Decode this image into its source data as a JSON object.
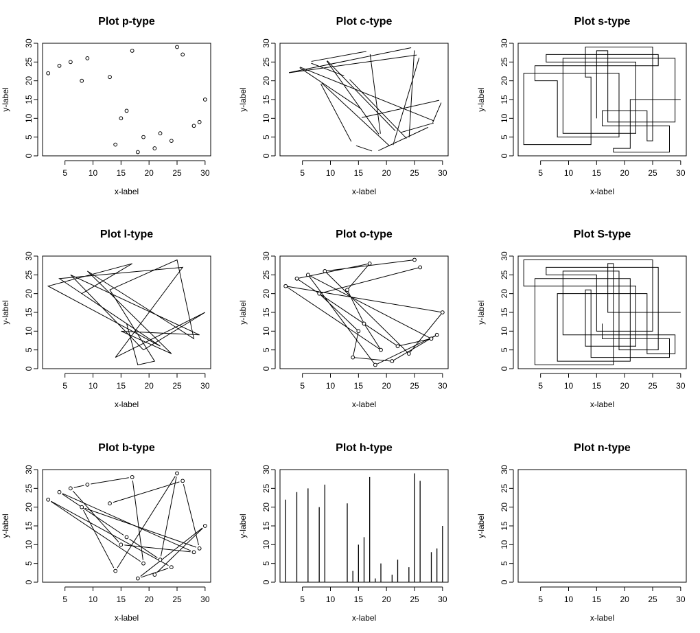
{
  "chart_data": [
    {
      "type": "scatter",
      "title": "Plot p-type",
      "plot_type": "p",
      "xlabel": "x-label",
      "ylabel": "y-label",
      "x": [
        2,
        4,
        6,
        8,
        9,
        13,
        14,
        15,
        16,
        17,
        18,
        19,
        21,
        22,
        24,
        25,
        26,
        28,
        29,
        30
      ],
      "y": [
        22,
        24,
        25,
        20,
        26,
        21,
        3,
        10,
        12,
        28,
        1,
        5,
        2,
        6,
        4,
        29,
        27,
        8,
        9,
        15
      ],
      "xlim": [
        1,
        31
      ],
      "ylim": [
        0,
        30
      ],
      "xticks": [
        5,
        10,
        15,
        20,
        25,
        30
      ],
      "yticks": [
        0,
        5,
        10,
        15,
        20,
        25,
        30
      ]
    },
    {
      "type": "line",
      "title": "Plot c-type",
      "plot_type": "c",
      "xlabel": "x-label",
      "ylabel": "y-label",
      "x": [
        15,
        30,
        28,
        18,
        14,
        8,
        21,
        26,
        2,
        25,
        24,
        13,
        6,
        17,
        19,
        9,
        22,
        29,
        4,
        16
      ],
      "y": [
        10,
        15,
        8,
        1,
        3,
        20,
        2,
        27,
        22,
        29,
        4,
        21,
        25,
        28,
        5,
        26,
        6,
        9,
        24,
        12
      ],
      "xlim": [
        1,
        31
      ],
      "ylim": [
        0,
        30
      ],
      "xticks": [
        5,
        10,
        15,
        20,
        25,
        30
      ],
      "yticks": [
        0,
        5,
        10,
        15,
        20,
        25,
        30
      ]
    },
    {
      "type": "line",
      "title": "Plot s-type",
      "plot_type": "s",
      "xlabel": "x-label",
      "ylabel": "y-label",
      "x": [
        30,
        21,
        18,
        28,
        16,
        24,
        25,
        13,
        14,
        2,
        19,
        8,
        4,
        26,
        6,
        22,
        9,
        29,
        17,
        15
      ],
      "y": [
        15,
        2,
        1,
        8,
        12,
        4,
        29,
        21,
        3,
        22,
        5,
        20,
        24,
        27,
        25,
        6,
        26,
        9,
        28,
        10
      ],
      "xlim": [
        1,
        31
      ],
      "ylim": [
        0,
        30
      ],
      "xticks": [
        5,
        10,
        15,
        20,
        25,
        30
      ],
      "yticks": [
        0,
        5,
        10,
        15,
        20,
        25,
        30
      ]
    },
    {
      "type": "line",
      "title": "Plot l-type",
      "plot_type": "l",
      "xlabel": "x-label",
      "ylabel": "y-label",
      "x": [
        8,
        17,
        2,
        22,
        4,
        26,
        14,
        30,
        19,
        6,
        29,
        15,
        24,
        9,
        28,
        25,
        13,
        21,
        18,
        16
      ],
      "y": [
        20,
        28,
        22,
        6,
        24,
        27,
        3,
        15,
        5,
        25,
        9,
        10,
        4,
        26,
        8,
        29,
        21,
        2,
        1,
        12
      ],
      "xlim": [
        1,
        31
      ],
      "ylim": [
        0,
        30
      ],
      "xticks": [
        5,
        10,
        15,
        20,
        25,
        30
      ],
      "yticks": [
        0,
        5,
        10,
        15,
        20,
        25,
        30
      ]
    },
    {
      "type": "line",
      "title": "Plot o-type",
      "plot_type": "o",
      "xlabel": "x-label",
      "ylabel": "y-label",
      "x": [
        25,
        9,
        24,
        30,
        2,
        19,
        16,
        13,
        17,
        4,
        22,
        28,
        6,
        18,
        29,
        21,
        14,
        15,
        8,
        26
      ],
      "y": [
        29,
        26,
        4,
        15,
        22,
        5,
        12,
        21,
        28,
        24,
        6,
        8,
        25,
        1,
        9,
        2,
        3,
        10,
        20,
        27
      ],
      "xlim": [
        1,
        31
      ],
      "ylim": [
        0,
        30
      ],
      "xticks": [
        5,
        10,
        15,
        20,
        25,
        30
      ],
      "yticks": [
        0,
        5,
        10,
        15,
        20,
        25,
        30
      ]
    },
    {
      "type": "line",
      "title": "Plot S-type",
      "plot_type": "S",
      "xlabel": "x-label",
      "ylabel": "y-label",
      "x": [
        16,
        28,
        14,
        13,
        22,
        2,
        25,
        15,
        6,
        26,
        19,
        9,
        29,
        24,
        8,
        21,
        4,
        18,
        17,
        30
      ],
      "y": [
        12,
        8,
        3,
        21,
        6,
        22,
        29,
        10,
        25,
        27,
        5,
        26,
        9,
        4,
        20,
        2,
        24,
        1,
        28,
        15
      ],
      "xlim": [
        1,
        31
      ],
      "ylim": [
        0,
        30
      ],
      "xticks": [
        5,
        10,
        15,
        20,
        25,
        30
      ],
      "yticks": [
        0,
        5,
        10,
        15,
        20,
        25,
        30
      ]
    },
    {
      "type": "line",
      "title": "Plot b-type",
      "plot_type": "b",
      "xlabel": "x-label",
      "ylabel": "y-label",
      "x": [
        13,
        26,
        29,
        8,
        14,
        25,
        22,
        16,
        4,
        28,
        15,
        6,
        9,
        17,
        19,
        2,
        24,
        18,
        30,
        21
      ],
      "y": [
        21,
        27,
        9,
        20,
        3,
        29,
        6,
        12,
        24,
        8,
        10,
        25,
        26,
        28,
        5,
        22,
        4,
        1,
        15,
        2
      ],
      "xlim": [
        1,
        31
      ],
      "ylim": [
        0,
        30
      ],
      "xticks": [
        5,
        10,
        15,
        20,
        25,
        30
      ],
      "yticks": [
        0,
        5,
        10,
        15,
        20,
        25,
        30
      ]
    },
    {
      "type": "bar",
      "title": "Plot h-type",
      "plot_type": "h",
      "xlabel": "x-label",
      "ylabel": "y-label",
      "x": [
        2,
        4,
        6,
        8,
        9,
        13,
        14,
        15,
        16,
        17,
        18,
        19,
        21,
        22,
        24,
        25,
        26,
        28,
        29,
        30
      ],
      "y": [
        22,
        24,
        25,
        20,
        26,
        21,
        3,
        10,
        12,
        28,
        1,
        5,
        2,
        6,
        4,
        29,
        27,
        8,
        9,
        15
      ],
      "xlim": [
        1,
        31
      ],
      "ylim": [
        0,
        30
      ],
      "xticks": [
        5,
        10,
        15,
        20,
        25,
        30
      ],
      "yticks": [
        0,
        5,
        10,
        15,
        20,
        25,
        30
      ]
    },
    {
      "type": "scatter",
      "title": "Plot n-type",
      "plot_type": "n",
      "xlabel": "x-label",
      "ylabel": "y-label",
      "x": [],
      "y": [],
      "xlim": [
        1,
        31
      ],
      "ylim": [
        0,
        30
      ],
      "xticks": [
        5,
        10,
        15,
        20,
        25,
        30
      ],
      "yticks": [
        0,
        5,
        10,
        15,
        20,
        25,
        30
      ]
    }
  ]
}
